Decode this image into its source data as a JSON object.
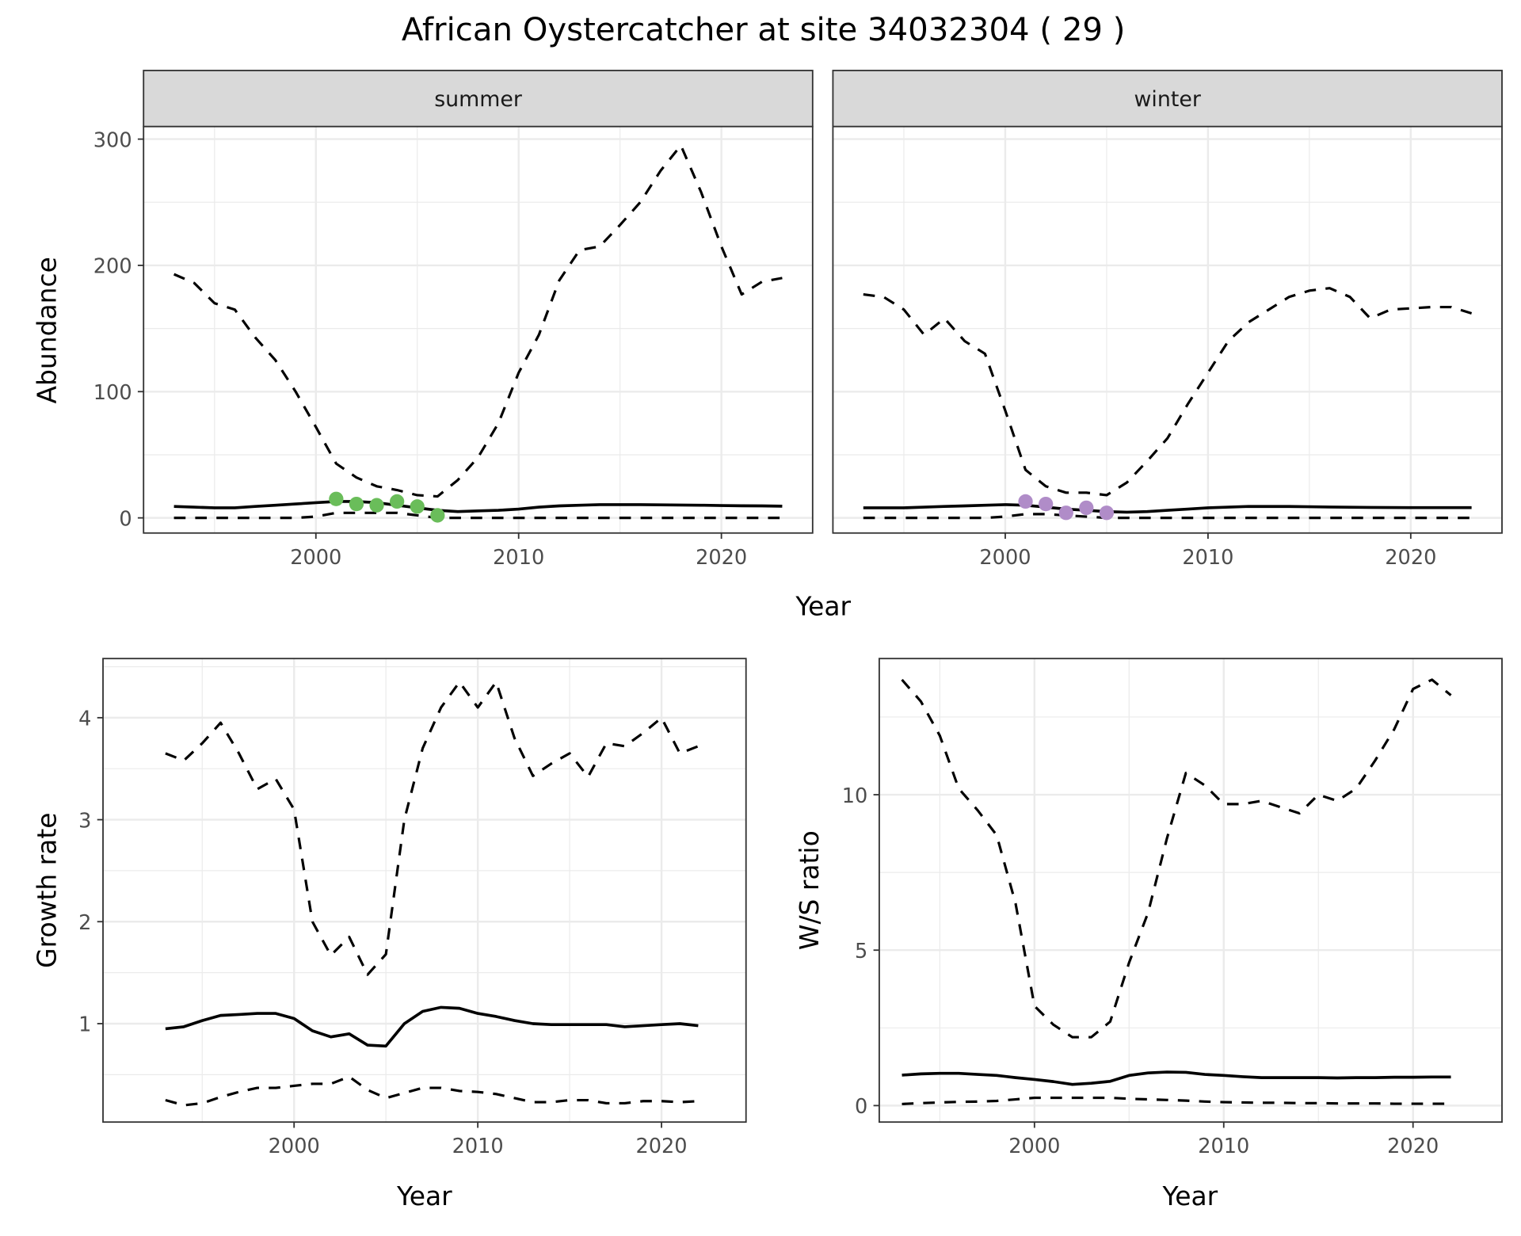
{
  "title": "African Oystercatcher at site 34032304 ( 29 )",
  "chart_data": [
    {
      "id": "summer",
      "type": "line",
      "strip": "summer",
      "xlabel": "Year",
      "ylabel": "Abundance",
      "xlim": [
        1991.5,
        2024.5
      ],
      "ylim": [
        -12,
        310
      ],
      "xticks": [
        2000,
        2010,
        2020
      ],
      "yticks": [
        0,
        100,
        200,
        300
      ],
      "x": [
        1993,
        1994,
        1995,
        1996,
        1997,
        1998,
        1999,
        2000,
        2001,
        2002,
        2003,
        2004,
        2005,
        2006,
        2007,
        2008,
        2009,
        2010,
        2011,
        2012,
        2013,
        2014,
        2015,
        2016,
        2017,
        2018,
        2019,
        2020,
        2021,
        2022,
        2023
      ],
      "series": [
        {
          "name": "upper",
          "style": "dashed",
          "values": [
            193,
            186,
            170,
            165,
            143,
            125,
            100,
            72,
            43,
            32,
            25,
            22,
            18,
            17,
            30,
            48,
            75,
            115,
            145,
            188,
            212,
            215,
            232,
            250,
            275,
            295,
            258,
            215,
            177,
            187,
            190
          ]
        },
        {
          "name": "mean",
          "style": "solid",
          "values": [
            9,
            8.5,
            8,
            8,
            9,
            10,
            11,
            12,
            13,
            13,
            12,
            10,
            8,
            6,
            5,
            5.5,
            6,
            7,
            8.5,
            9.5,
            10,
            10.5,
            10.5,
            10.5,
            10.3,
            10.2,
            10,
            9.8,
            9.6,
            9.5,
            9.3
          ]
        },
        {
          "name": "lower",
          "style": "dashed",
          "values": [
            0,
            0,
            0,
            0,
            0,
            0,
            0,
            1,
            4,
            4,
            4,
            4,
            2,
            0,
            0,
            0,
            0,
            0,
            0,
            0,
            0,
            0,
            0,
            0,
            0,
            0,
            0,
            0,
            0,
            0,
            0
          ]
        }
      ],
      "points": {
        "color": "#6abd5a",
        "x": [
          2001,
          2002,
          2003,
          2004,
          2005,
          2006
        ],
        "y": [
          15,
          11,
          10,
          13,
          9,
          2
        ]
      }
    },
    {
      "id": "winter",
      "type": "line",
      "strip": "winter",
      "xlim": [
        1991.5,
        2024.5
      ],
      "ylim": [
        -12,
        310
      ],
      "xticks": [
        2000,
        2010,
        2020
      ],
      "yticks": [
        0,
        100,
        200,
        300
      ],
      "x": [
        1993,
        1994,
        1995,
        1996,
        1997,
        1998,
        1999,
        2000,
        2001,
        2002,
        2003,
        2004,
        2005,
        2006,
        2007,
        2008,
        2009,
        2010,
        2011,
        2012,
        2013,
        2014,
        2015,
        2016,
        2017,
        2018,
        2019,
        2020,
        2021,
        2022,
        2023
      ],
      "series": [
        {
          "name": "upper",
          "style": "dashed",
          "values": [
            177,
            175,
            165,
            145,
            158,
            140,
            130,
            85,
            38,
            25,
            20,
            20,
            18,
            28,
            45,
            63,
            90,
            115,
            140,
            155,
            165,
            175,
            180,
            182,
            175,
            158,
            165,
            166,
            167,
            167,
            162
          ]
        },
        {
          "name": "mean",
          "style": "solid",
          "values": [
            8,
            8,
            8,
            8.5,
            9,
            9.5,
            10,
            10.5,
            10,
            8.5,
            7,
            6,
            5,
            4.5,
            5,
            6,
            7,
            8,
            8.5,
            9,
            9,
            9,
            8.8,
            8.6,
            8.4,
            8.3,
            8.2,
            8.1,
            8.1,
            8.1,
            8.1
          ]
        },
        {
          "name": "lower",
          "style": "dashed",
          "values": [
            0,
            0,
            0,
            0,
            0,
            0,
            0,
            1,
            3,
            3,
            2,
            1,
            0,
            0,
            0,
            0,
            0,
            0,
            0,
            0,
            0,
            0,
            0,
            0,
            0,
            0,
            0,
            0,
            0,
            0,
            0
          ]
        }
      ],
      "points": {
        "color": "#b08cc8",
        "x": [
          2001,
          2002,
          2003,
          2004,
          2005
        ],
        "y": [
          13,
          11,
          4,
          8,
          4
        ]
      }
    },
    {
      "id": "growth",
      "type": "line",
      "xlabel": "Year",
      "ylabel": "Growth rate",
      "xlim": [
        1989.6,
        2024.6
      ],
      "ylim": [
        0.035,
        4.58
      ],
      "xticks": [
        2000,
        2010,
        2020
      ],
      "yticks": [
        1,
        2,
        3,
        4
      ],
      "x": [
        1993,
        1994,
        1995,
        1996,
        1997,
        1998,
        1999,
        2000,
        2001,
        2002,
        2003,
        2004,
        2005,
        2006,
        2007,
        2008,
        2009,
        2010,
        2011,
        2012,
        2013,
        2014,
        2015,
        2016,
        2017,
        2018,
        2019,
        2020,
        2021,
        2022
      ],
      "series": [
        {
          "name": "upper",
          "style": "dashed",
          "values": [
            3.65,
            3.58,
            3.75,
            3.95,
            3.65,
            3.3,
            3.4,
            3.1,
            2.0,
            1.67,
            1.85,
            1.48,
            1.68,
            3.0,
            3.7,
            4.1,
            4.35,
            4.1,
            4.35,
            3.8,
            3.43,
            3.55,
            3.65,
            3.42,
            3.75,
            3.72,
            3.85,
            4.0,
            3.65,
            3.72
          ]
        },
        {
          "name": "mean",
          "style": "solid",
          "values": [
            0.95,
            0.97,
            1.03,
            1.08,
            1.09,
            1.1,
            1.1,
            1.05,
            0.93,
            0.87,
            0.9,
            0.79,
            0.78,
            1.0,
            1.12,
            1.16,
            1.15,
            1.1,
            1.07,
            1.03,
            1.0,
            0.99,
            0.99,
            0.99,
            0.99,
            0.97,
            0.98,
            0.99,
            1.0,
            0.98
          ]
        },
        {
          "name": "lower",
          "style": "dashed",
          "values": [
            0.25,
            0.2,
            0.22,
            0.28,
            0.33,
            0.37,
            0.37,
            0.39,
            0.41,
            0.41,
            0.48,
            0.35,
            0.27,
            0.32,
            0.37,
            0.37,
            0.34,
            0.33,
            0.31,
            0.27,
            0.23,
            0.23,
            0.25,
            0.25,
            0.22,
            0.22,
            0.24,
            0.24,
            0.23,
            0.24
          ]
        }
      ]
    },
    {
      "id": "ratio",
      "type": "line",
      "xlabel": "Year",
      "ylabel": "W/S ratio",
      "xlim": [
        1991.8,
        2024.7
      ],
      "ylim": [
        -0.53,
        14.38
      ],
      "xticks": [
        2000,
        2010,
        2020
      ],
      "yticks": [
        0,
        5,
        10
      ],
      "x": [
        1993,
        1994,
        1995,
        1996,
        1997,
        1998,
        1999,
        2000,
        2001,
        2002,
        2003,
        2004,
        2005,
        2006,
        2007,
        2008,
        2009,
        2010,
        2011,
        2012,
        2013,
        2014,
        2015,
        2016,
        2017,
        2018,
        2019,
        2020,
        2021,
        2022
      ],
      "series": [
        {
          "name": "upper",
          "style": "dashed",
          "values": [
            13.7,
            13.0,
            11.9,
            10.2,
            9.5,
            8.7,
            6.5,
            3.2,
            2.6,
            2.2,
            2.2,
            2.7,
            4.6,
            6.2,
            8.6,
            10.7,
            10.3,
            9.7,
            9.7,
            9.8,
            9.6,
            9.4,
            10.0,
            9.8,
            10.2,
            11.1,
            12.1,
            13.4,
            13.7,
            13.2
          ]
        },
        {
          "name": "mean",
          "style": "solid",
          "values": [
            0.98,
            1.02,
            1.04,
            1.04,
            1.0,
            0.97,
            0.9,
            0.84,
            0.77,
            0.68,
            0.72,
            0.78,
            0.97,
            1.05,
            1.08,
            1.07,
            1.0,
            0.97,
            0.93,
            0.9,
            0.9,
            0.9,
            0.9,
            0.89,
            0.9,
            0.9,
            0.91,
            0.91,
            0.92,
            0.92
          ]
        },
        {
          "name": "lower",
          "style": "dashed",
          "values": [
            0.05,
            0.08,
            0.1,
            0.12,
            0.13,
            0.15,
            0.2,
            0.25,
            0.25,
            0.25,
            0.25,
            0.25,
            0.22,
            0.2,
            0.18,
            0.16,
            0.13,
            0.11,
            0.1,
            0.09,
            0.09,
            0.08,
            0.08,
            0.07,
            0.07,
            0.07,
            0.06,
            0.06,
            0.06,
            0.06
          ]
        }
      ]
    }
  ]
}
